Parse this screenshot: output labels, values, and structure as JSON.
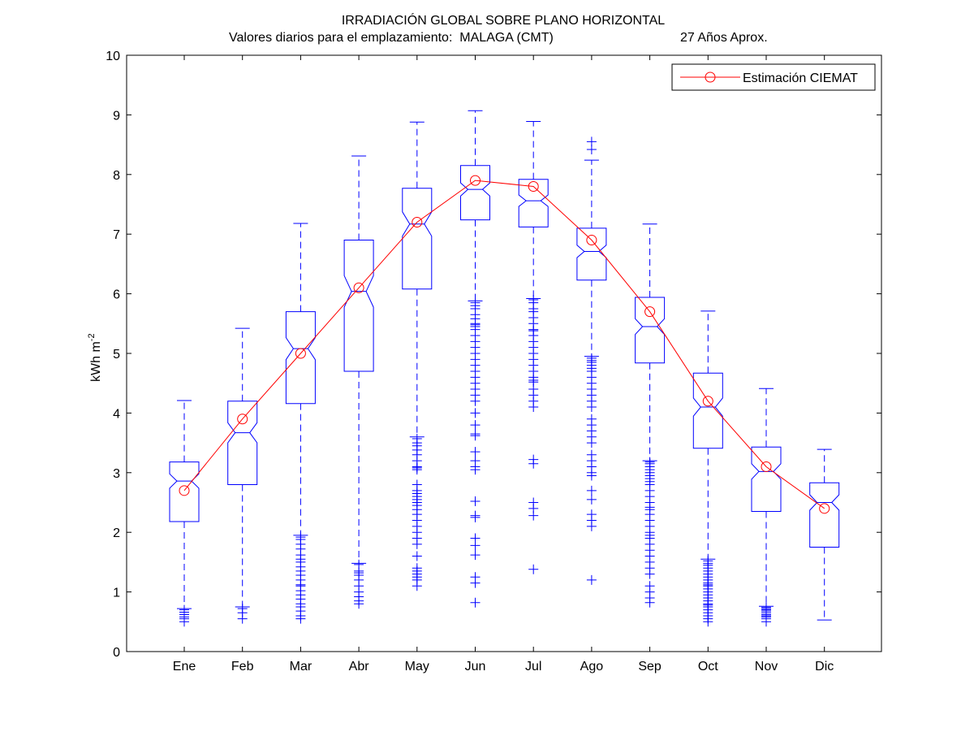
{
  "chart_data": {
    "type": "box",
    "title": "IRRADIACIÓN GLOBAL SOBRE PLANO HORIZONTAL",
    "subtitle_left": "Valores diarios para el emplazamiento:  MALAGA (CMT)",
    "subtitle_right": "27 Años Aprox.",
    "ylabel": "kWh m",
    "ylabel_sup": "-2",
    "ylim": [
      0,
      10
    ],
    "yticks": [
      0,
      1,
      2,
      3,
      4,
      5,
      6,
      7,
      8,
      9,
      10
    ],
    "grid": false,
    "legend_position": "top-right",
    "categories": [
      "Ene",
      "Feb",
      "Mar",
      "Abr",
      "May",
      "Jun",
      "Jul",
      "Ago",
      "Sep",
      "Oct",
      "Nov",
      "Dic"
    ],
    "boxes": [
      {
        "whisker_low": 0.72,
        "q1": 2.18,
        "median": 2.86,
        "q3": 3.18,
        "whisker_high": 4.21,
        "outliers": [
          0.7,
          0.66,
          0.62,
          0.58,
          0.55,
          0.5
        ]
      },
      {
        "whisker_low": 0.75,
        "q1": 2.8,
        "median": 3.67,
        "q3": 4.2,
        "whisker_high": 5.42,
        "outliers": [
          0.72,
          0.65,
          0.55
        ]
      },
      {
        "whisker_low": 1.95,
        "q1": 4.16,
        "median": 5.08,
        "q3": 5.7,
        "whisker_high": 7.18,
        "outliers": [
          1.92,
          1.88,
          1.8,
          1.72,
          1.62,
          1.55,
          1.5,
          1.42,
          1.35,
          1.28,
          1.2,
          1.12,
          1.1,
          1.02,
          0.95,
          0.88,
          0.8,
          0.75,
          0.68,
          0.6,
          0.55
        ]
      },
      {
        "whisker_low": 1.48,
        "q1": 4.7,
        "median": 6.04,
        "q3": 6.9,
        "whisker_high": 8.31,
        "outliers": [
          1.46,
          1.35,
          1.32,
          1.28,
          1.2,
          1.1,
          1.0,
          0.92,
          0.85,
          0.8
        ]
      },
      {
        "whisker_low": 3.6,
        "q1": 6.08,
        "median": 7.17,
        "q3": 7.77,
        "whisker_high": 8.88,
        "outliers": [
          3.57,
          3.5,
          3.45,
          3.38,
          3.3,
          3.2,
          3.1,
          3.08,
          3.05,
          2.8,
          2.7,
          2.65,
          2.6,
          2.55,
          2.5,
          2.45,
          2.38,
          2.3,
          2.2,
          2.1,
          2.0,
          1.9,
          1.8,
          1.6,
          1.4,
          1.35,
          1.3,
          1.25,
          1.2,
          1.1
        ]
      },
      {
        "whisker_low": 5.88,
        "q1": 7.24,
        "median": 7.75,
        "q3": 8.15,
        "whisker_high": 9.07,
        "outliers": [
          5.85,
          5.8,
          5.75,
          5.65,
          5.58,
          5.5,
          5.48,
          5.45,
          5.4,
          5.3,
          5.2,
          5.1,
          5.0,
          4.9,
          4.8,
          4.7,
          4.6,
          4.5,
          4.4,
          4.3,
          4.2,
          4.0,
          3.8,
          3.65,
          3.62,
          3.35,
          3.2,
          3.1,
          3.05,
          2.52,
          2.28,
          2.25,
          1.9,
          1.78,
          1.62,
          1.25,
          1.15,
          0.82
        ]
      },
      {
        "whisker_low": 5.92,
        "q1": 7.12,
        "median": 7.56,
        "q3": 7.92,
        "whisker_high": 8.89,
        "outliers": [
          5.9,
          5.85,
          5.75,
          5.7,
          5.6,
          5.5,
          5.4,
          5.38,
          5.3,
          5.2,
          5.1,
          5.0,
          4.9,
          4.8,
          4.7,
          4.6,
          4.55,
          4.52,
          4.4,
          4.3,
          4.2,
          4.1,
          3.22,
          3.15,
          2.5,
          2.4,
          2.28,
          1.38
        ]
      },
      {
        "whisker_low": 4.95,
        "q1": 6.23,
        "median": 6.71,
        "q3": 7.1,
        "whisker_high": 8.24,
        "outliers": [
          8.55,
          8.42,
          4.92,
          4.88,
          4.85,
          4.8,
          4.75,
          4.7,
          4.6,
          4.5,
          4.4,
          4.3,
          4.2,
          4.1,
          3.9,
          3.8,
          3.7,
          3.6,
          3.5,
          3.3,
          3.2,
          3.1,
          3.0,
          2.95,
          2.7,
          2.55,
          2.3,
          2.2,
          2.1,
          1.2
        ]
      },
      {
        "whisker_low": 3.2,
        "q1": 4.84,
        "median": 5.45,
        "q3": 5.94,
        "whisker_high": 7.17,
        "outliers": [
          3.18,
          3.15,
          3.1,
          3.05,
          3.0,
          2.95,
          2.9,
          2.85,
          2.8,
          2.7,
          2.6,
          2.5,
          2.42,
          2.38,
          2.3,
          2.2,
          2.1,
          2.0,
          1.95,
          1.9,
          1.8,
          1.7,
          1.6,
          1.5,
          1.4,
          1.3,
          1.1,
          1.0,
          0.9,
          0.82
        ]
      },
      {
        "whisker_low": 1.55,
        "q1": 3.41,
        "median": 4.1,
        "q3": 4.67,
        "whisker_high": 5.71,
        "outliers": [
          1.52,
          1.48,
          1.45,
          1.4,
          1.35,
          1.3,
          1.25,
          1.2,
          1.15,
          1.12,
          1.1,
          1.05,
          1.0,
          0.95,
          0.9,
          0.85,
          0.8,
          0.78,
          0.75,
          0.7,
          0.65,
          0.6,
          0.55,
          0.5
        ]
      },
      {
        "whisker_low": 0.76,
        "q1": 2.35,
        "median": 3.02,
        "q3": 3.43,
        "whisker_high": 4.41,
        "outliers": [
          0.74,
          0.72,
          0.7,
          0.68,
          0.65,
          0.62,
          0.6,
          0.58,
          0.55,
          0.5
        ]
      },
      {
        "whisker_low": 0.53,
        "q1": 1.75,
        "median": 2.5,
        "q3": 2.83,
        "whisker_high": 3.39,
        "outliers": []
      }
    ],
    "series": [
      {
        "name": "Estimación CIEMAT",
        "color": "#ff0000",
        "values": [
          2.7,
          3.9,
          5.0,
          6.1,
          7.2,
          7.9,
          7.8,
          6.9,
          5.7,
          4.2,
          3.1,
          2.4
        ]
      }
    ],
    "box_color": "#0000ff"
  }
}
